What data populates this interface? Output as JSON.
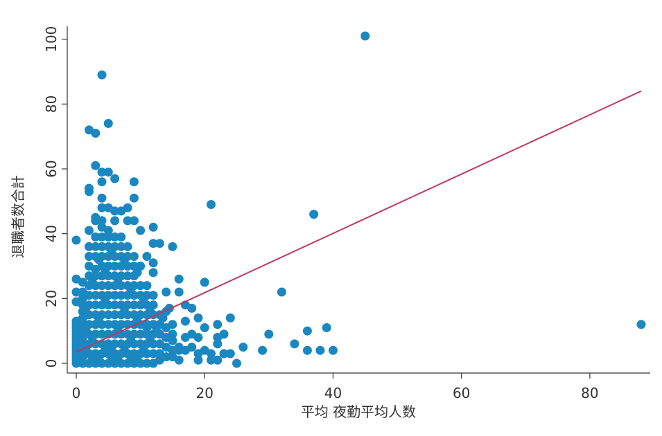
{
  "chart_data": {
    "type": "scatter",
    "xlabel": "平均 夜勤平均人数",
    "ylabel": "退職者数合計",
    "xlim": [
      0,
      88
    ],
    "ylim": [
      0,
      101
    ],
    "x_ticks": [
      0,
      20,
      40,
      60,
      80
    ],
    "y_ticks": [
      0,
      20,
      40,
      60,
      80,
      100
    ],
    "grid": false,
    "legend": "none",
    "colors": {
      "points": "#1a87c0",
      "fit_line": "#c0365f",
      "axis": "#333333"
    },
    "fit_line": {
      "x": [
        0,
        88
      ],
      "y": [
        3.5,
        84
      ]
    },
    "series": [
      {
        "points": [
          [
            45,
            101
          ],
          [
            4,
            89
          ],
          [
            2,
            72
          ],
          [
            3,
            71
          ],
          [
            5,
            74
          ],
          [
            3,
            61
          ],
          [
            4,
            59
          ],
          [
            5,
            59
          ],
          [
            4,
            56
          ],
          [
            6,
            57
          ],
          [
            9,
            56
          ],
          [
            2,
            54
          ],
          [
            2,
            53
          ],
          [
            4,
            51
          ],
          [
            9,
            51
          ],
          [
            21,
            49
          ],
          [
            4,
            48
          ],
          [
            5,
            48
          ],
          [
            6,
            47
          ],
          [
            7,
            47
          ],
          [
            8,
            48
          ],
          [
            37,
            46
          ],
          [
            3,
            45
          ],
          [
            3,
            44
          ],
          [
            4,
            44
          ],
          [
            6,
            44
          ],
          [
            8,
            44
          ],
          [
            9,
            44
          ],
          [
            12,
            42
          ],
          [
            2,
            41
          ],
          [
            5,
            41
          ],
          [
            10,
            41
          ],
          [
            12,
            37
          ],
          [
            13,
            37
          ],
          [
            15,
            36
          ],
          [
            0,
            38
          ],
          [
            11,
            33
          ],
          [
            12,
            31
          ],
          [
            2,
            30
          ],
          [
            3,
            29
          ],
          [
            10,
            30
          ],
          [
            12,
            28
          ],
          [
            0,
            26
          ],
          [
            1,
            25
          ],
          [
            16,
            26
          ],
          [
            20,
            25
          ],
          [
            0,
            22
          ],
          [
            14,
            22
          ],
          [
            16,
            22
          ],
          [
            32,
            22
          ],
          [
            0,
            19
          ],
          [
            17,
            18
          ],
          [
            18,
            17
          ],
          [
            14,
            16
          ],
          [
            19,
            14
          ],
          [
            22,
            12
          ],
          [
            24,
            14
          ],
          [
            17,
            13
          ],
          [
            20,
            11
          ],
          [
            11,
            11
          ],
          [
            39,
            11
          ],
          [
            36,
            10
          ],
          [
            15,
            9
          ],
          [
            18,
            9
          ],
          [
            19,
            8
          ],
          [
            22,
            8
          ],
          [
            23,
            9
          ],
          [
            30,
            9
          ],
          [
            22,
            6
          ],
          [
            26,
            5
          ],
          [
            34,
            6
          ],
          [
            29,
            4
          ],
          [
            36,
            4
          ],
          [
            38,
            4
          ],
          [
            40,
            4
          ],
          [
            88,
            12
          ],
          [
            15,
            4
          ],
          [
            16,
            5
          ],
          [
            17,
            4
          ],
          [
            19,
            3
          ],
          [
            21,
            3
          ],
          [
            23,
            3
          ],
          [
            24,
            3
          ],
          [
            13,
            1
          ],
          [
            16,
            1
          ],
          [
            19,
            1
          ],
          [
            21,
            1
          ],
          [
            22,
            1
          ],
          [
            25,
            0
          ],
          [
            12,
            0
          ],
          [
            0,
            0
          ],
          [
            0,
            1
          ],
          [
            0,
            2
          ],
          [
            0,
            3
          ],
          [
            0,
            4
          ],
          [
            0,
            5
          ],
          [
            0,
            6
          ],
          [
            0,
            7
          ],
          [
            0,
            8
          ],
          [
            0,
            9
          ],
          [
            0,
            10
          ],
          [
            0,
            11
          ],
          [
            0,
            12
          ],
          [
            0,
            13
          ],
          [
            1,
            0
          ],
          [
            1,
            2
          ],
          [
            1,
            4
          ],
          [
            1,
            6
          ],
          [
            1,
            8
          ],
          [
            1,
            10
          ],
          [
            1,
            12
          ],
          [
            1,
            14
          ],
          [
            1,
            16
          ],
          [
            1,
            18
          ],
          [
            1,
            20
          ],
          [
            1,
            22
          ],
          [
            2,
            0
          ],
          [
            2,
            3
          ],
          [
            2,
            6
          ],
          [
            2,
            9
          ],
          [
            2,
            12
          ],
          [
            2,
            15
          ],
          [
            2,
            18
          ],
          [
            2,
            21
          ],
          [
            2,
            24
          ],
          [
            2,
            27
          ],
          [
            2,
            33
          ],
          [
            2,
            36
          ],
          [
            3,
            0
          ],
          [
            3,
            3
          ],
          [
            3,
            6
          ],
          [
            3,
            9
          ],
          [
            3,
            12
          ],
          [
            3,
            15
          ],
          [
            3,
            18
          ],
          [
            3,
            21
          ],
          [
            3,
            24
          ],
          [
            3,
            27
          ],
          [
            3,
            33
          ],
          [
            3,
            36
          ],
          [
            3,
            39
          ],
          [
            4,
            0
          ],
          [
            4,
            3
          ],
          [
            4,
            6
          ],
          [
            4,
            9
          ],
          [
            4,
            12
          ],
          [
            4,
            15
          ],
          [
            4,
            18
          ],
          [
            4,
            21
          ],
          [
            4,
            24
          ],
          [
            4,
            27
          ],
          [
            4,
            30
          ],
          [
            4,
            33
          ],
          [
            4,
            36
          ],
          [
            4,
            39
          ],
          [
            4,
            42
          ],
          [
            5,
            0
          ],
          [
            5,
            3
          ],
          [
            5,
            6
          ],
          [
            5,
            9
          ],
          [
            5,
            12
          ],
          [
            5,
            15
          ],
          [
            5,
            18
          ],
          [
            5,
            21
          ],
          [
            5,
            24
          ],
          [
            5,
            27
          ],
          [
            5,
            30
          ],
          [
            5,
            33
          ],
          [
            5,
            36
          ],
          [
            5,
            39
          ],
          [
            6,
            0
          ],
          [
            6,
            3
          ],
          [
            6,
            6
          ],
          [
            6,
            9
          ],
          [
            6,
            12
          ],
          [
            6,
            15
          ],
          [
            6,
            18
          ],
          [
            6,
            21
          ],
          [
            6,
            24
          ],
          [
            6,
            27
          ],
          [
            6,
            30
          ],
          [
            6,
            33
          ],
          [
            6,
            36
          ],
          [
            6,
            39
          ],
          [
            7,
            0
          ],
          [
            7,
            3
          ],
          [
            7,
            6
          ],
          [
            7,
            9
          ],
          [
            7,
            12
          ],
          [
            7,
            15
          ],
          [
            7,
            18
          ],
          [
            7,
            21
          ],
          [
            7,
            24
          ],
          [
            7,
            27
          ],
          [
            7,
            30
          ],
          [
            7,
            33
          ],
          [
            7,
            36
          ],
          [
            7,
            39
          ],
          [
            8,
            0
          ],
          [
            8,
            3
          ],
          [
            8,
            6
          ],
          [
            8,
            9
          ],
          [
            8,
            12
          ],
          [
            8,
            15
          ],
          [
            8,
            18
          ],
          [
            8,
            21
          ],
          [
            8,
            24
          ],
          [
            8,
            27
          ],
          [
            8,
            30
          ],
          [
            8,
            33
          ],
          [
            8,
            36
          ],
          [
            9,
            0
          ],
          [
            9,
            3
          ],
          [
            9,
            6
          ],
          [
            9,
            9
          ],
          [
            9,
            12
          ],
          [
            9,
            15
          ],
          [
            9,
            18
          ],
          [
            9,
            21
          ],
          [
            9,
            24
          ],
          [
            9,
            27
          ],
          [
            9,
            30
          ],
          [
            9,
            33
          ],
          [
            10,
            0
          ],
          [
            10,
            3
          ],
          [
            10,
            6
          ],
          [
            10,
            9
          ],
          [
            10,
            12
          ],
          [
            10,
            15
          ],
          [
            10,
            18
          ],
          [
            10,
            21
          ],
          [
            10,
            24
          ],
          [
            11,
            0
          ],
          [
            11,
            3
          ],
          [
            11,
            6
          ],
          [
            11,
            9
          ],
          [
            11,
            12
          ],
          [
            11,
            15
          ],
          [
            11,
            18
          ],
          [
            11,
            21
          ],
          [
            11,
            24
          ],
          [
            12,
            3
          ],
          [
            12,
            6
          ],
          [
            12,
            9
          ],
          [
            12,
            12
          ],
          [
            12,
            15
          ],
          [
            12,
            18
          ],
          [
            12,
            21
          ],
          [
            13,
            3
          ],
          [
            13,
            6
          ],
          [
            13,
            9
          ],
          [
            13,
            12
          ],
          [
            13,
            15
          ],
          [
            14,
            2
          ],
          [
            14,
            5
          ],
          [
            14,
            8
          ],
          [
            14,
            11
          ],
          [
            15,
            2
          ],
          [
            15,
            7
          ],
          [
            15,
            12
          ],
          [
            16,
            4
          ],
          [
            17,
            8
          ],
          [
            18,
            5
          ],
          [
            20,
            4
          ],
          [
            1.5,
            17
          ],
          [
            2.5,
            25
          ],
          [
            3.5,
            32
          ],
          [
            4.5,
            28
          ],
          [
            5.5,
            35
          ],
          [
            6.5,
            26
          ],
          [
            7.5,
            31
          ],
          [
            8.5,
            23
          ],
          [
            9.5,
            28
          ],
          [
            10.5,
            20
          ],
          [
            11.5,
            16
          ],
          [
            2.5,
            8
          ],
          [
            3.5,
            13
          ],
          [
            4.5,
            19
          ],
          [
            5.5,
            5
          ],
          [
            6.5,
            11
          ],
          [
            7.5,
            17
          ],
          [
            8.5,
            7
          ],
          [
            9.5,
            14
          ],
          [
            10.5,
            4
          ],
          [
            11.5,
            7
          ],
          [
            12.5,
            10
          ],
          [
            13.5,
            14
          ],
          [
            14.5,
            17
          ],
          [
            0.5,
            3
          ],
          [
            0.5,
            7
          ],
          [
            1.5,
            5
          ],
          [
            1.5,
            10
          ],
          [
            2.5,
            1
          ],
          [
            3.5,
            2
          ],
          [
            4.5,
            4
          ],
          [
            5.5,
            1
          ],
          [
            6.5,
            2
          ],
          [
            7.5,
            4
          ],
          [
            8.5,
            2
          ],
          [
            9.5,
            1
          ]
        ]
      }
    ]
  }
}
